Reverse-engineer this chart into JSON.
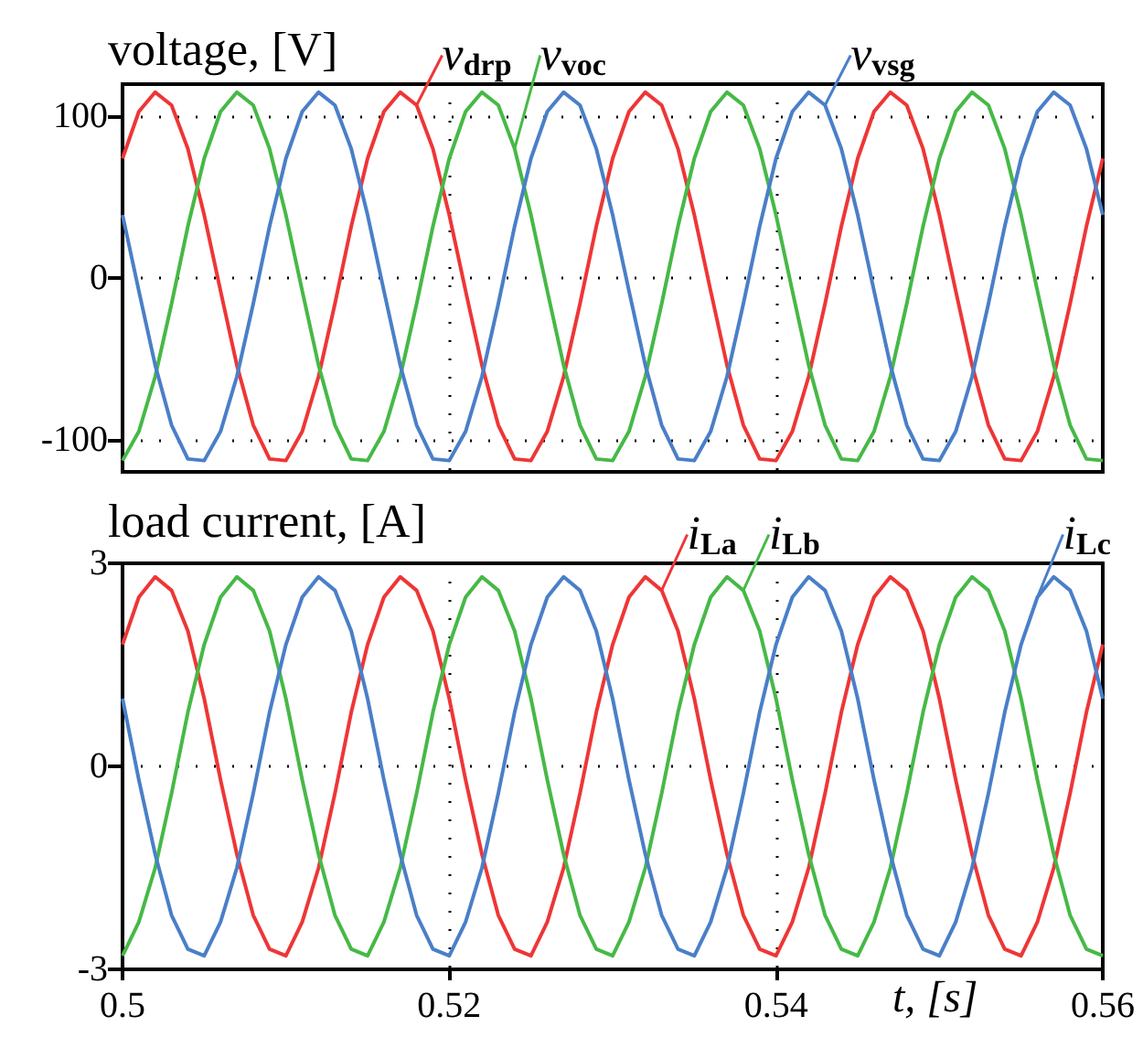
{
  "chart_data": [
    {
      "type": "line",
      "ylabel": "voltage, [V]",
      "xlim": [
        0.5,
        0.56
      ],
      "xticks": [
        0.5,
        0.52,
        0.54,
        0.56
      ],
      "ylim": [
        -120,
        120
      ],
      "yticks": [
        -100,
        0,
        100
      ],
      "tick_labels": "y",
      "grid": true,
      "legend": "top",
      "marker": "none",
      "line_style": "solid",
      "x": [
        0.5,
        0.501,
        0.502,
        0.503,
        0.504,
        0.505,
        0.506,
        0.507,
        0.508,
        0.509,
        0.51,
        0.511,
        0.512,
        0.513,
        0.514,
        0.515,
        0.516,
        0.517,
        0.518,
        0.519,
        0.52,
        0.521,
        0.522,
        0.523,
        0.524,
        0.525,
        0.526,
        0.527,
        0.528,
        0.529,
        0.53,
        0.531,
        0.532,
        0.533,
        0.534,
        0.535,
        0.536,
        0.537,
        0.538,
        0.539,
        0.54,
        0.541,
        0.542,
        0.543,
        0.544,
        0.545,
        0.546,
        0.547,
        0.548,
        0.549,
        0.55,
        0.551,
        0.552,
        0.553,
        0.554,
        0.555,
        0.556,
        0.557,
        0.558,
        0.559,
        0.56
      ],
      "series": [
        {
          "name": "v$_{drp}$",
          "color": "#ee3636",
          "values": [
            74,
            103,
            115,
            107,
            80,
            39,
            -8,
            -54,
            -91,
            -112,
            -113,
            -95,
            -61,
            -16,
            32,
            74,
            103,
            115,
            107,
            80,
            39,
            -8,
            -54,
            -91,
            -112,
            -113,
            -95,
            -61,
            -16,
            32,
            74,
            103,
            115,
            107,
            80,
            39,
            -8,
            -54,
            -91,
            -112,
            -113,
            -95,
            -61,
            -16,
            32,
            74,
            103,
            115,
            107,
            80,
            39,
            -8,
            -54,
            -91,
            -112,
            -113,
            -95,
            -61,
            -16,
            32,
            74
          ]
        },
        {
          "name": "v$_{voc}$",
          "color": "#46b946",
          "values": [
            -113,
            -95,
            -61,
            -16,
            32,
            74,
            103,
            115,
            107,
            80,
            39,
            -8,
            -54,
            -91,
            -112,
            -113,
            -95,
            -61,
            -16,
            32,
            74,
            103,
            115,
            107,
            80,
            39,
            -8,
            -54,
            -91,
            -112,
            -113,
            -95,
            -61,
            -16,
            32,
            74,
            103,
            115,
            107,
            80,
            39,
            -8,
            -54,
            -91,
            -112,
            -113,
            -95,
            -61,
            -16,
            32,
            74,
            103,
            115,
            107,
            80,
            39,
            -8,
            -54,
            -91,
            -112,
            -113
          ]
        },
        {
          "name": "v$_{vsg}$",
          "color": "#4a7fc8",
          "values": [
            39,
            -8,
            -54,
            -91,
            -112,
            -113,
            -95,
            -61,
            -16,
            32,
            74,
            103,
            115,
            107,
            80,
            39,
            -8,
            -54,
            -91,
            -112,
            -113,
            -95,
            -61,
            -16,
            32,
            74,
            103,
            115,
            107,
            80,
            39,
            -8,
            -54,
            -91,
            -112,
            -113,
            -95,
            -61,
            -16,
            32,
            74,
            103,
            115,
            107,
            80,
            39,
            -8,
            -54,
            -91,
            -112,
            -113,
            -95,
            -61,
            -16,
            32,
            74,
            103,
            115,
            107,
            80,
            39
          ]
        }
      ]
    },
    {
      "type": "line",
      "ylabel": "load current, [A]",
      "xlabel": "t, [s]",
      "xlim": [
        0.5,
        0.56
      ],
      "xticks": [
        0.5,
        0.52,
        0.54,
        0.56
      ],
      "ylim": [
        -3,
        3
      ],
      "yticks": [
        -3,
        0,
        3
      ],
      "grid": true,
      "legend": "top",
      "marker": "none",
      "line_style": "solid",
      "x": [
        0.5,
        0.501,
        0.502,
        0.503,
        0.504,
        0.505,
        0.506,
        0.507,
        0.508,
        0.509,
        0.51,
        0.511,
        0.512,
        0.513,
        0.514,
        0.515,
        0.516,
        0.517,
        0.518,
        0.519,
        0.52,
        0.521,
        0.522,
        0.523,
        0.524,
        0.525,
        0.526,
        0.527,
        0.528,
        0.529,
        0.53,
        0.531,
        0.532,
        0.533,
        0.534,
        0.535,
        0.536,
        0.537,
        0.538,
        0.539,
        0.54,
        0.541,
        0.542,
        0.543,
        0.544,
        0.545,
        0.546,
        0.547,
        0.548,
        0.549,
        0.55,
        0.551,
        0.552,
        0.553,
        0.554,
        0.555,
        0.556,
        0.557,
        0.558,
        0.559,
        0.56
      ],
      "series": [
        {
          "name": "i$_{La}$",
          "color": "#ee3636",
          "values": [
            1.8,
            2.5,
            2.8,
            2.6,
            2.0,
            1.0,
            -0.2,
            -1.3,
            -2.2,
            -2.7,
            -2.8,
            -2.3,
            -1.5,
            -0.4,
            0.8,
            1.8,
            2.5,
            2.8,
            2.6,
            2.0,
            1.0,
            -0.2,
            -1.3,
            -2.2,
            -2.7,
            -2.8,
            -2.3,
            -1.5,
            -0.4,
            0.8,
            1.8,
            2.5,
            2.8,
            2.6,
            2.0,
            1.0,
            -0.2,
            -1.3,
            -2.2,
            -2.7,
            -2.8,
            -2.3,
            -1.5,
            -0.4,
            0.8,
            1.8,
            2.5,
            2.8,
            2.6,
            2.0,
            1.0,
            -0.2,
            -1.3,
            -2.2,
            -2.7,
            -2.8,
            -2.3,
            -1.5,
            -0.4,
            0.8,
            1.8
          ]
        },
        {
          "name": "i$_{Lb}$",
          "color": "#46b946",
          "values": [
            -2.8,
            -2.3,
            -1.5,
            -0.4,
            0.8,
            1.8,
            2.5,
            2.8,
            2.6,
            2.0,
            1.0,
            -0.2,
            -1.3,
            -2.2,
            -2.7,
            -2.8,
            -2.3,
            -1.5,
            -0.4,
            0.8,
            1.8,
            2.5,
            2.8,
            2.6,
            2.0,
            1.0,
            -0.2,
            -1.3,
            -2.2,
            -2.7,
            -2.8,
            -2.3,
            -1.5,
            -0.4,
            0.8,
            1.8,
            2.5,
            2.8,
            2.6,
            2.0,
            1.0,
            -0.2,
            -1.3,
            -2.2,
            -2.7,
            -2.8,
            -2.3,
            -1.5,
            -0.4,
            0.8,
            1.8,
            2.5,
            2.8,
            2.6,
            2.0,
            1.0,
            -0.2,
            -1.3,
            -2.2,
            -2.7,
            -2.8
          ]
        },
        {
          "name": "i$_{Lc}$",
          "color": "#4a7fc8",
          "values": [
            1.0,
            -0.2,
            -1.3,
            -2.2,
            -2.7,
            -2.8,
            -2.3,
            -1.5,
            -0.4,
            0.8,
            1.8,
            2.5,
            2.8,
            2.6,
            2.0,
            1.0,
            -0.2,
            -1.3,
            -2.2,
            -2.7,
            -2.8,
            -2.3,
            -1.5,
            -0.4,
            0.8,
            1.8,
            2.5,
            2.8,
            2.6,
            2.0,
            1.0,
            -0.2,
            -1.3,
            -2.2,
            -2.7,
            -2.8,
            -2.3,
            -1.5,
            -0.4,
            0.8,
            1.8,
            2.5,
            2.8,
            2.6,
            2.0,
            1.0,
            -0.2,
            -1.3,
            -2.2,
            -2.7,
            -2.8,
            -2.3,
            -1.5,
            -0.4,
            0.8,
            1.8,
            2.5,
            2.8,
            2.6,
            2.0,
            1.0
          ]
        }
      ]
    }
  ]
}
